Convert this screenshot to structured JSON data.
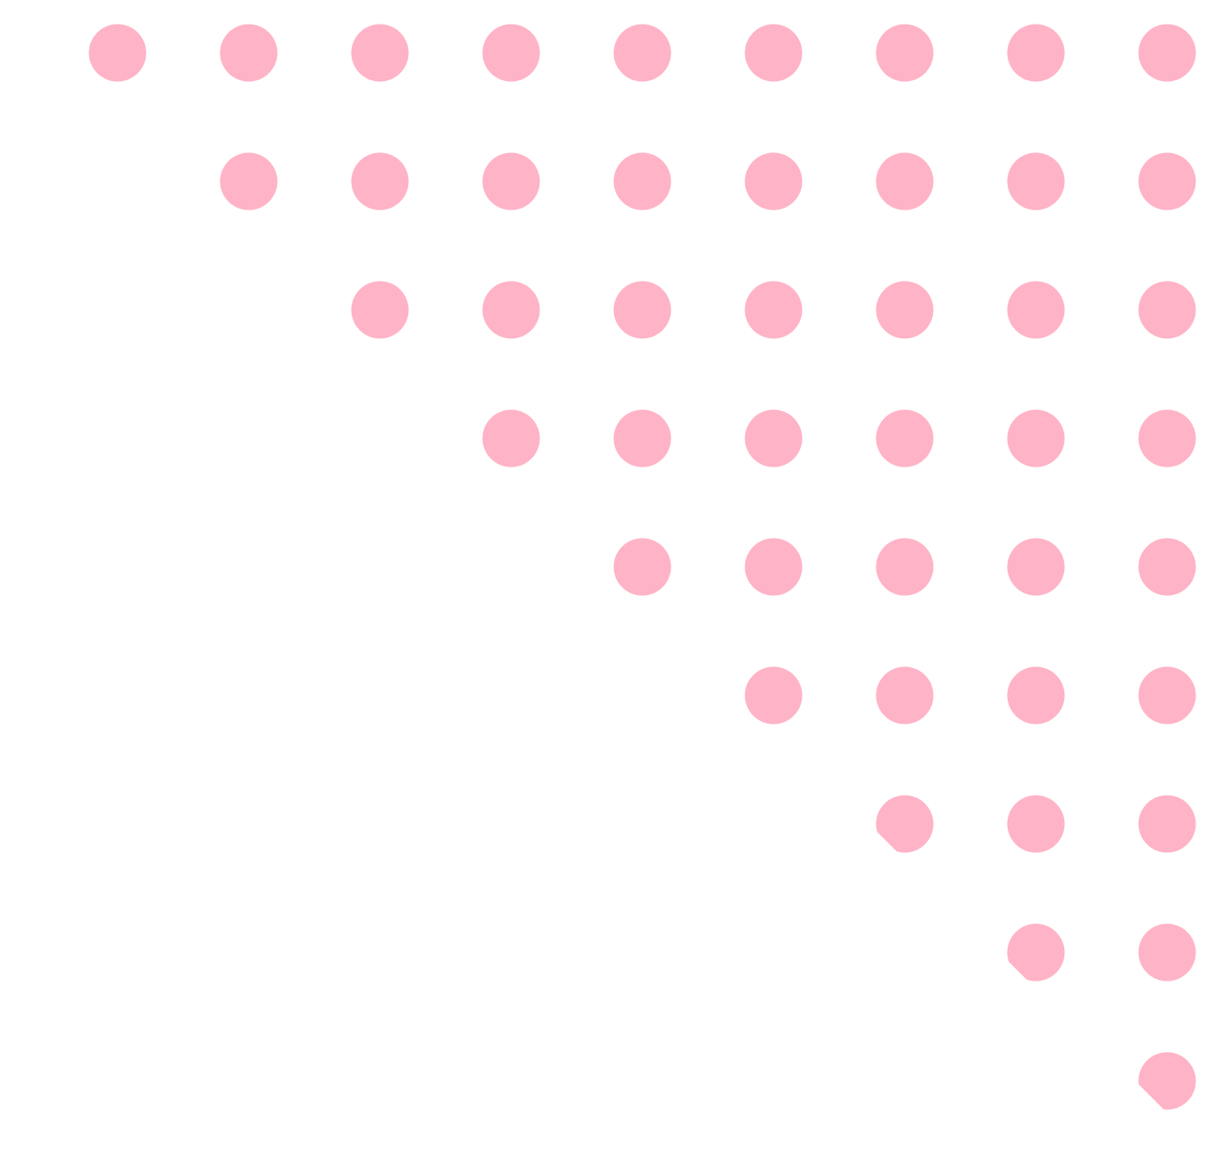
{
  "pattern": {
    "dot_color": "#ffb3c6",
    "background": "#ffffff",
    "rows": 9,
    "columns": 9,
    "shape": "triangular-upper-right-dot-grid"
  }
}
